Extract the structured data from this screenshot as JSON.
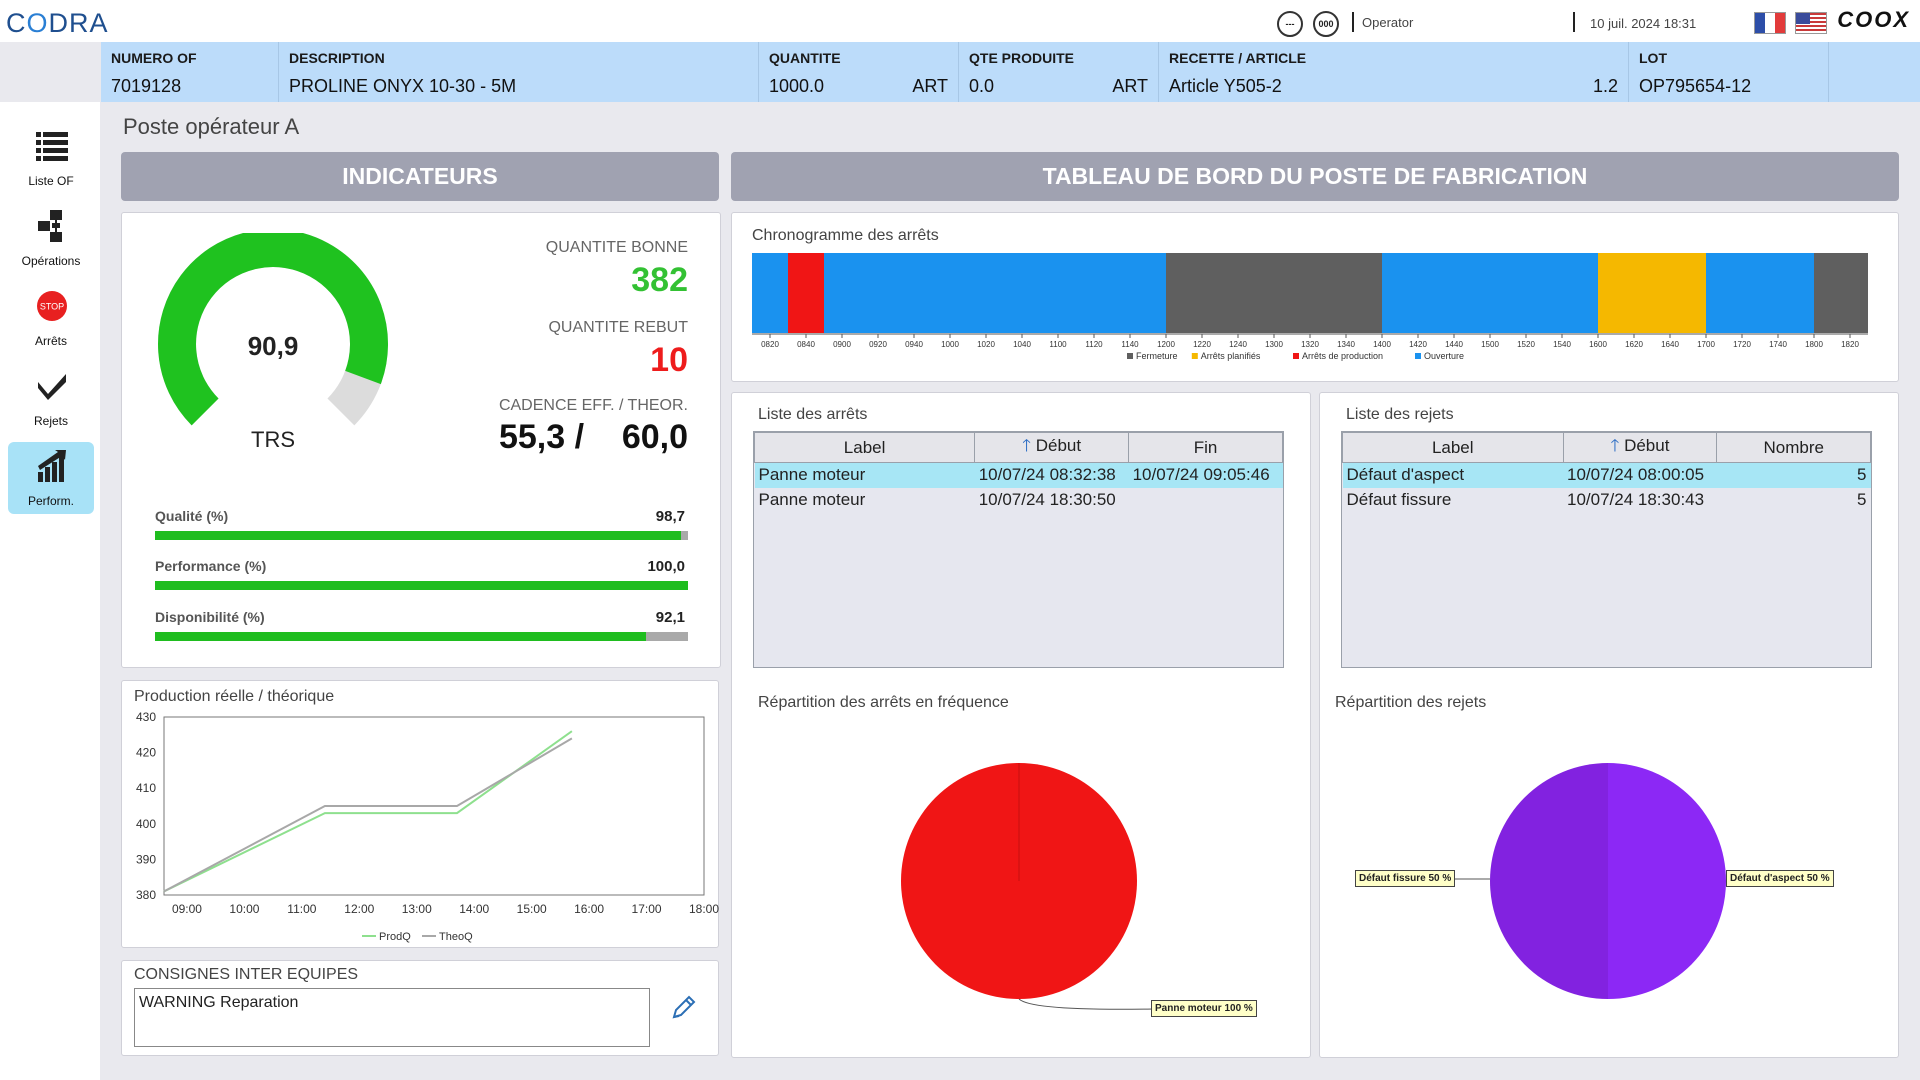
{
  "topbar": {
    "logo_prefix": "C",
    "logo_o": "O",
    "logo_suffix": "DRA",
    "icon1_label": "---",
    "icon2_label": "000",
    "user": "Operator",
    "datetime": "10 juil. 2024 18:31",
    "brand": "COOX"
  },
  "header": {
    "cells": [
      {
        "label": "NUMERO OF",
        "value": "7019128",
        "unit": ""
      },
      {
        "label": "DESCRIPTION",
        "value": "PROLINE ONYX 10-30 - 5M",
        "unit": ""
      },
      {
        "label": "QUANTITE",
        "value": "1000.0",
        "unit": "ART"
      },
      {
        "label": "QTE PRODUITE",
        "value": "0.0",
        "unit": "ART"
      },
      {
        "label": "RECETTE / ARTICLE",
        "value": "Article Y505-2",
        "unit": "1.2"
      },
      {
        "label": "LOT",
        "value": "OP795654-12",
        "unit": ""
      }
    ]
  },
  "sidebar": {
    "items": [
      {
        "label": "Liste OF",
        "icon": "list-icon"
      },
      {
        "label": "Opérations",
        "icon": "operations-icon"
      },
      {
        "label": "Arrêts",
        "icon": "stop-icon",
        "icon_text": "STOP"
      },
      {
        "label": "Rejets",
        "icon": "reject-icon"
      },
      {
        "label": "Perform.",
        "icon": "performance-icon"
      }
    ]
  },
  "page_title": "Poste opérateur A",
  "banners": {
    "left": "INDICATEURS",
    "right": "TABLEAU DE BORD DU POSTE DE FABRICATION"
  },
  "indicators": {
    "trs_value": "90,9",
    "trs_fraction": 0.909,
    "trs_label": "TRS",
    "good_label": "QUANTITE BONNE",
    "good_value": "382",
    "reject_label": "QUANTITE REBUT",
    "reject_value": "10",
    "cadence_label": "CADENCE EFF. / THEOR.",
    "cadence_value": "55,3 /    60,0",
    "bars": [
      {
        "label": "Qualité (%)",
        "value": "98,7",
        "pct": 98.7
      },
      {
        "label": "Performance (%)",
        "value": "100,0",
        "pct": 100.0
      },
      {
        "label": "Disponibilité (%)",
        "value": "92,1",
        "pct": 92.1
      }
    ]
  },
  "colors": {
    "green": "#1fbd1f",
    "red": "#f01515",
    "blue": "#1a92ef",
    "grey": "#5f5f5f",
    "orange": "#f5b800",
    "purple": "#8c28f5"
  },
  "production": {
    "title": "Production réelle / théorique"
  },
  "chart_data": [
    {
      "type": "line",
      "title": "Production réelle / théorique",
      "x": [
        "09:00",
        "10:00",
        "11:00",
        "12:00",
        "13:00",
        "14:00",
        "15:00",
        "16:00",
        "17:00",
        "18:00"
      ],
      "x_ticks": [
        "09:00",
        "10:00",
        "11:00",
        "12:00",
        "13:00",
        "14:00",
        "15:00",
        "16:00",
        "17:00",
        "18:00"
      ],
      "y_ticks": [
        "380",
        "390",
        "400",
        "410",
        "420",
        "430"
      ],
      "ylim": [
        380,
        430
      ],
      "xlim_hours": [
        8.6,
        18.0
      ],
      "series": [
        {
          "name": "ProdQ",
          "color": "#8ee08e",
          "points": [
            [
              8.6,
              381
            ],
            [
              11.4,
              403
            ],
            [
              13.7,
              403
            ],
            [
              15.7,
              426
            ]
          ]
        },
        {
          "name": "TheoQ",
          "color": "#a8a8a8",
          "points": [
            [
              8.6,
              381
            ],
            [
              11.4,
              405
            ],
            [
              13.7,
              405
            ],
            [
              15.7,
              424
            ]
          ]
        }
      ],
      "legend": "bottom"
    },
    {
      "type": "timeline",
      "title": "Chronogramme des arrêts",
      "range": [
        "08:10",
        "18:30"
      ],
      "ticks": [
        "0820",
        "0840",
        "0900",
        "0920",
        "0940",
        "1000",
        "1020",
        "1040",
        "1100",
        "1120",
        "1140",
        "1200",
        "1220",
        "1240",
        "1300",
        "1320",
        "1340",
        "1400",
        "1420",
        "1440",
        "1500",
        "1520",
        "1540",
        "1600",
        "1620",
        "1640",
        "1700",
        "1720",
        "1740",
        "1800",
        "1820"
      ],
      "segments": [
        {
          "category": "Ouverture",
          "start": "08:10",
          "end": "08:30"
        },
        {
          "category": "Arrêts de production",
          "start": "08:30",
          "end": "08:50"
        },
        {
          "category": "Ouverture",
          "start": "08:50",
          "end": "12:00"
        },
        {
          "category": "Fermeture",
          "start": "12:00",
          "end": "14:00"
        },
        {
          "category": "Ouverture",
          "start": "14:00",
          "end": "16:00"
        },
        {
          "category": "Arrêts planifiés",
          "start": "16:00",
          "end": "17:00"
        },
        {
          "category": "Ouverture",
          "start": "17:00",
          "end": "18:00"
        },
        {
          "category": "Fermeture",
          "start": "18:00",
          "end": "18:30"
        }
      ],
      "legend": [
        "Fermeture",
        "Arrêts planifiés",
        "Arrêts de production",
        "Ouverture"
      ]
    },
    {
      "type": "pie",
      "title": "Répartition des arrêts en fréquence",
      "slices": [
        {
          "label": "Panne moteur 100 %",
          "value": 100
        }
      ]
    },
    {
      "type": "pie",
      "title": "Répartition des rejets",
      "slices": [
        {
          "label": "Défaut d'aspect 50 %",
          "value": 50
        },
        {
          "label": "Défaut fissure 50 %",
          "value": 50
        }
      ]
    }
  ],
  "arrets": {
    "title": "Liste des arrêts",
    "columns": [
      "Label",
      "Début",
      "Fin"
    ],
    "rows": [
      {
        "label": "Panne moteur",
        "debut": "10/07/24 08:32:38",
        "fin": "10/07/24 09:05:46"
      },
      {
        "label": "Panne moteur",
        "debut": "10/07/24 18:30:50",
        "fin": ""
      }
    ]
  },
  "rejets": {
    "title": "Liste des rejets",
    "columns": [
      "Label",
      "Début",
      "Nombre"
    ],
    "rows": [
      {
        "label": "Défaut d'aspect",
        "debut": "10/07/24 08:00:05",
        "nombre": "5"
      },
      {
        "label": "Défaut fissure",
        "debut": "10/07/24 18:30:43",
        "nombre": "5"
      }
    ]
  },
  "consignes": {
    "title": "CONSIGNES INTER EQUIPES",
    "text": "WARNING Reparation"
  }
}
